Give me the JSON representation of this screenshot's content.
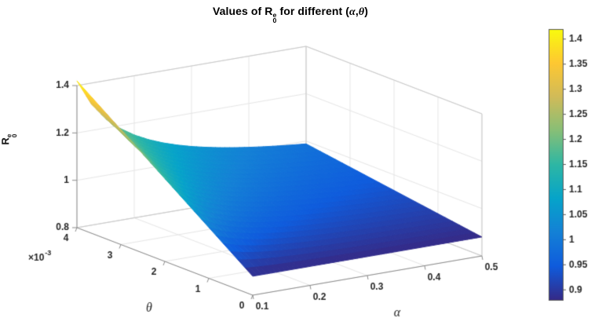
{
  "title": {
    "full_text": "Values of R_0^e for different (α,θ)",
    "prefix": "Values of R",
    "sup": "e",
    "sub": "0",
    "mid": " for different (",
    "alpha": "α",
    "comma": ",",
    "theta": "θ",
    "close": ")"
  },
  "zlabel_parts": {
    "letter": "R",
    "sup": "e",
    "sub": "0"
  },
  "chart_data": {
    "type": "surface",
    "title": "Values of R_0^e for different (α,θ)",
    "xlabel": "α",
    "ylabel": "θ",
    "zlabel": "R_0^e",
    "x": [
      0.1,
      0.125,
      0.15,
      0.175,
      0.2,
      0.225,
      0.25,
      0.275,
      0.3,
      0.325,
      0.35,
      0.375,
      0.4,
      0.425,
      0.45,
      0.475,
      0.5
    ],
    "y": [
      0,
      0.0005,
      0.001,
      0.0015,
      0.002,
      0.0025,
      0.003,
      0.0035,
      0.004
    ],
    "z": [
      [
        0.88,
        0.88,
        0.88,
        0.88,
        0.88,
        0.88,
        0.88,
        0.88,
        0.88,
        0.88,
        0.88,
        0.88,
        0.88,
        0.88,
        0.88,
        0.88,
        0.88
      ],
      [
        0.9475,
        0.934,
        0.925,
        0.9186,
        0.9138,
        0.91,
        0.907,
        0.9045,
        0.9025,
        0.9008,
        0.8993,
        0.898,
        0.8969,
        0.8959,
        0.895,
        0.8942,
        0.8935
      ],
      [
        1.015,
        0.988,
        0.97,
        0.9571,
        0.9475,
        0.94,
        0.934,
        0.9291,
        0.925,
        0.9215,
        0.9186,
        0.916,
        0.9138,
        0.9118,
        0.91,
        0.9084,
        0.907
      ],
      [
        1.0825,
        1.042,
        1.015,
        0.9957,
        0.9813,
        0.97,
        0.961,
        0.9536,
        0.9475,
        0.9423,
        0.9379,
        0.934,
        0.9306,
        0.9276,
        0.925,
        0.9226,
        0.9205
      ],
      [
        1.15,
        1.096,
        1.06,
        1.0343,
        1.015,
        1.0,
        0.988,
        0.9782,
        0.97,
        0.9631,
        0.9571,
        0.952,
        0.9475,
        0.9435,
        0.94,
        0.9368,
        0.934
      ],
      [
        1.2175,
        1.15,
        1.105,
        1.0729,
        1.0488,
        1.03,
        1.015,
        1.0027,
        0.9925,
        0.9838,
        0.9764,
        0.97,
        0.9644,
        0.9594,
        0.955,
        0.9511,
        0.9475
      ],
      [
        1.285,
        1.204,
        1.15,
        1.1114,
        1.0825,
        1.06,
        1.042,
        1.0273,
        1.015,
        1.0046,
        0.9957,
        0.988,
        0.9813,
        0.9753,
        0.97,
        0.9653,
        0.961
      ],
      [
        1.3525,
        1.258,
        1.195,
        1.15,
        1.1163,
        1.09,
        1.069,
        1.0518,
        1.0375,
        1.0254,
        1.015,
        1.006,
        0.9981,
        0.9912,
        0.985,
        0.9795,
        0.9745
      ],
      [
        1.42,
        1.312,
        1.24,
        1.1886,
        1.15,
        1.12,
        1.096,
        1.0764,
        1.06,
        1.0462,
        1.0343,
        1.024,
        1.015,
        1.0071,
        1.0,
        0.9937,
        0.988
      ]
    ],
    "xlim": [
      0.1,
      0.5
    ],
    "ylim": [
      0,
      0.004
    ],
    "zlim": [
      0.8,
      1.4
    ],
    "xticks": [
      0.1,
      0.2,
      0.3,
      0.4,
      0.5
    ],
    "xtick_labels": [
      "0.1",
      "0.2",
      "0.3",
      "0.4",
      "0.5"
    ],
    "yticks": [
      0,
      0.001,
      0.002,
      0.003,
      0.004
    ],
    "ytick_labels": [
      "0",
      "1",
      "2",
      "3",
      "4"
    ],
    "y_mult": {
      "base": "×10",
      "exp": "-3",
      "display": "×10^-3"
    },
    "zticks": [
      0.8,
      1,
      1.2,
      1.4
    ],
    "ztick_labels": [
      "0.8",
      "1",
      "1.2",
      "1.4"
    ],
    "view": {
      "azimuth": -37.5,
      "elevation": 30
    },
    "grid": true,
    "colormap": [
      "#352a87",
      "#0f5cdd",
      "#1481d6",
      "#06a4ca",
      "#2eb7a4",
      "#87bf77",
      "#d1bb59",
      "#fec832",
      "#f9fb0e"
    ],
    "colorbar": {
      "min": 0.88,
      "max": 1.42,
      "ticks": [
        0.9,
        0.95,
        1,
        1.05,
        1.1,
        1.15,
        1.2,
        1.25,
        1.3,
        1.35,
        1.4
      ],
      "tick_labels": [
        "0.9",
        "0.95",
        "1",
        "1.05",
        "1.1",
        "1.15",
        "1.2",
        "1.25",
        "1.3",
        "1.35",
        "1.4"
      ]
    }
  },
  "colors": {
    "background": "#ffffff",
    "grid": "#e6e6e6",
    "box_edge": "#c9c9c9",
    "axis": "#8c8c8c",
    "text": "#262626"
  }
}
